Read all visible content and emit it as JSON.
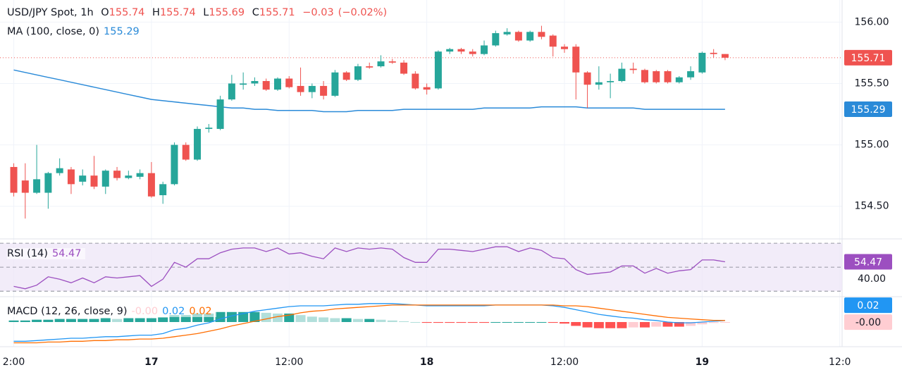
{
  "chart_data": {
    "type": "candlestick",
    "title": "USD/JPY Spot, 1h",
    "ohlc_letters": [
      "O",
      "H",
      "L",
      "C"
    ],
    "change": {
      "value": -0.03,
      "label": "−0.03"
    },
    "change_pct": {
      "value": -0.02,
      "label": "(−0.02%)"
    },
    "up_color": "#26a69a",
    "down_color": "#ef5350",
    "xlim": [
      -1.2,
      72.2
    ],
    "xticks": [
      {
        "value": 0,
        "label": "2:00"
      },
      {
        "value": 12,
        "label": "17"
      },
      {
        "value": 24,
        "label": "12:00"
      },
      {
        "value": 36,
        "label": "18"
      },
      {
        "value": 48,
        "label": "12:00"
      },
      {
        "value": 60,
        "label": "19"
      },
      {
        "value": 72,
        "label": "12:0"
      }
    ],
    "ylim": [
      154.24,
      156.18
    ],
    "yticks": [
      {
        "value": 154.5,
        "label": "154.50"
      },
      {
        "value": 155,
        "label": "155.00"
      },
      {
        "value": 155.5,
        "label": "155.50"
      },
      {
        "value": 156,
        "label": "156.00"
      }
    ],
    "grid": true,
    "x": [
      0,
      1,
      2,
      3,
      4,
      5,
      6,
      7,
      8,
      9,
      10,
      11,
      12,
      13,
      14,
      15,
      16,
      17,
      18,
      19,
      20,
      21,
      22,
      23,
      24,
      25,
      26,
      27,
      28,
      29,
      30,
      31,
      32,
      33,
      34,
      35,
      36,
      37,
      38,
      39,
      40,
      41,
      42,
      43,
      44,
      45,
      46,
      47,
      48,
      49,
      50,
      51,
      52,
      53,
      54,
      55,
      56,
      57,
      58,
      59,
      60,
      61,
      62
    ],
    "open": [
      154.82,
      154.71,
      154.61,
      154.61,
      154.77,
      154.8,
      154.7,
      154.75,
      154.66,
      154.79,
      154.73,
      154.74,
      154.77,
      154.59,
      154.68,
      155.0,
      154.88,
      155.13,
      155.13,
      155.37,
      155.49,
      155.5,
      155.52,
      155.45,
      155.54,
      155.48,
      155.43,
      155.48,
      155.4,
      155.59,
      155.53,
      155.64,
      155.64,
      155.68,
      155.67,
      155.58,
      155.47,
      155.46,
      155.76,
      155.78,
      155.76,
      155.74,
      155.81,
      155.9,
      155.92,
      155.85,
      155.92,
      155.89,
      155.8,
      155.8,
      155.59,
      155.49,
      155.51,
      155.52,
      155.62,
      155.61,
      155.6,
      155.6,
      155.51,
      155.55,
      155.59,
      155.75,
      155.74
    ],
    "high": [
      154.85,
      154.85,
      155.0,
      154.78,
      154.89,
      154.82,
      154.8,
      154.91,
      154.8,
      154.82,
      154.79,
      154.8,
      154.86,
      154.7,
      155.02,
      155.02,
      155.15,
      155.17,
      155.4,
      155.57,
      155.59,
      155.55,
      155.54,
      155.55,
      155.56,
      155.63,
      155.5,
      155.52,
      155.61,
      155.6,
      155.66,
      155.67,
      155.73,
      155.7,
      155.69,
      155.6,
      155.5,
      155.77,
      155.79,
      155.79,
      155.78,
      155.85,
      155.93,
      155.95,
      155.93,
      155.93,
      155.97,
      155.9,
      155.82,
      155.82,
      155.6,
      155.64,
      155.58,
      155.67,
      155.67,
      155.62,
      155.61,
      155.61,
      155.56,
      155.64,
      155.76,
      155.78,
      155.74
    ],
    "low": [
      154.58,
      154.4,
      154.6,
      154.48,
      154.75,
      154.6,
      154.67,
      154.64,
      154.6,
      154.71,
      154.72,
      154.72,
      154.57,
      154.52,
      154.67,
      154.87,
      154.87,
      155.1,
      155.12,
      155.36,
      155.45,
      155.48,
      155.44,
      155.44,
      155.46,
      155.4,
      155.38,
      155.37,
      155.39,
      155.52,
      155.52,
      155.62,
      155.63,
      155.66,
      155.57,
      155.45,
      155.41,
      155.45,
      155.74,
      155.74,
      155.72,
      155.73,
      155.8,
      155.89,
      155.84,
      155.84,
      155.86,
      155.72,
      155.75,
      155.37,
      155.3,
      155.45,
      155.38,
      155.51,
      155.58,
      155.5,
      155.5,
      155.5,
      155.5,
      155.53,
      155.58,
      155.71,
      155.69
    ],
    "close": [
      154.61,
      154.61,
      154.72,
      154.77,
      154.81,
      154.68,
      154.75,
      154.66,
      154.79,
      154.73,
      154.75,
      154.77,
      154.58,
      154.68,
      155.0,
      154.88,
      155.13,
      155.14,
      155.37,
      155.5,
      155.5,
      155.52,
      155.45,
      155.54,
      155.47,
      155.43,
      155.48,
      155.4,
      155.59,
      155.53,
      155.64,
      155.63,
      155.68,
      155.67,
      155.58,
      155.46,
      155.45,
      155.76,
      155.78,
      155.76,
      155.74,
      155.81,
      155.91,
      155.92,
      155.85,
      155.92,
      155.88,
      155.8,
      155.78,
      155.59,
      155.49,
      155.51,
      155.52,
      155.62,
      155.61,
      155.51,
      155.51,
      155.51,
      155.55,
      155.6,
      155.75,
      155.74,
      155.71
    ],
    "ma": {
      "name": "MA (100, close, 0)",
      "color": "#2a8ad8",
      "values": [
        155.61,
        155.59,
        155.57,
        155.55,
        155.53,
        155.51,
        155.49,
        155.47,
        155.45,
        155.43,
        155.41,
        155.39,
        155.37,
        155.36,
        155.35,
        155.34,
        155.33,
        155.32,
        155.31,
        155.3,
        155.3,
        155.29,
        155.29,
        155.28,
        155.28,
        155.28,
        155.28,
        155.27,
        155.27,
        155.27,
        155.28,
        155.28,
        155.28,
        155.28,
        155.29,
        155.29,
        155.29,
        155.29,
        155.29,
        155.29,
        155.29,
        155.3,
        155.3,
        155.3,
        155.3,
        155.3,
        155.31,
        155.31,
        155.31,
        155.31,
        155.3,
        155.3,
        155.3,
        155.3,
        155.3,
        155.29,
        155.29,
        155.29,
        155.29,
        155.29,
        155.29,
        155.29,
        155.29
      ]
    },
    "rsi": {
      "name": "RSI (14)",
      "color": "#9c4fc0",
      "band_color": "#ede4f7",
      "ylim": [
        26,
        73
      ],
      "yticks": [
        {
          "value": 40,
          "label": "40.00"
        }
      ],
      "levels": [
        30,
        50,
        70
      ],
      "values": [
        34,
        32,
        35,
        42,
        40,
        37,
        41,
        37,
        42,
        41,
        42,
        43,
        34,
        40,
        54,
        50,
        57,
        57,
        62,
        65,
        66,
        66,
        63,
        66,
        61,
        62,
        59,
        57,
        66,
        63,
        66,
        65,
        66,
        65,
        58,
        54,
        54,
        65,
        65,
        64,
        63,
        65,
        67,
        67,
        63,
        66,
        64,
        58,
        57,
        48,
        44,
        45,
        46,
        51,
        51,
        45,
        49,
        45,
        47,
        48,
        56,
        56,
        54.47
      ]
    },
    "macd": {
      "name": "MACD (12, 26, close, 9)",
      "ylim": [
        -0.32,
        0.32
      ],
      "macd": {
        "color": "#2196f3",
        "values": [
          -0.25,
          -0.25,
          -0.24,
          -0.23,
          -0.22,
          -0.21,
          -0.21,
          -0.2,
          -0.19,
          -0.19,
          -0.18,
          -0.17,
          -0.17,
          -0.15,
          -0.1,
          -0.08,
          -0.04,
          -0.01,
          0.04,
          0.08,
          0.11,
          0.14,
          0.16,
          0.18,
          0.2,
          0.21,
          0.21,
          0.21,
          0.22,
          0.23,
          0.23,
          0.24,
          0.24,
          0.24,
          0.23,
          0.22,
          0.21,
          0.21,
          0.21,
          0.21,
          0.21,
          0.21,
          0.22,
          0.22,
          0.22,
          0.22,
          0.22,
          0.21,
          0.19,
          0.16,
          0.13,
          0.1,
          0.08,
          0.06,
          0.05,
          0.03,
          0.02,
          0.0,
          -0.01,
          -0.01,
          0.0,
          0.01,
          0.02
        ]
      },
      "signal": {
        "color": "#ff6d00",
        "values": [
          -0.27,
          -0.27,
          -0.27,
          -0.26,
          -0.26,
          -0.25,
          -0.25,
          -0.24,
          -0.24,
          -0.23,
          -0.23,
          -0.22,
          -0.22,
          -0.21,
          -0.19,
          -0.17,
          -0.15,
          -0.12,
          -0.09,
          -0.05,
          -0.02,
          0.01,
          0.04,
          0.07,
          0.09,
          0.12,
          0.14,
          0.15,
          0.17,
          0.18,
          0.19,
          0.2,
          0.21,
          0.22,
          0.22,
          0.22,
          0.22,
          0.22,
          0.22,
          0.22,
          0.22,
          0.22,
          0.22,
          0.22,
          0.22,
          0.22,
          0.22,
          0.22,
          0.21,
          0.21,
          0.2,
          0.18,
          0.16,
          0.14,
          0.12,
          0.1,
          0.08,
          0.06,
          0.05,
          0.04,
          0.03,
          0.022,
          0.02
        ]
      },
      "histogram": {
        "colors": [
          "#26a69a",
          "#b2dfdb",
          "#ff5252",
          "#ffcdd2"
        ],
        "values": [
          0.02,
          0.02,
          0.03,
          0.03,
          0.04,
          0.04,
          0.04,
          0.04,
          0.05,
          0.04,
          0.05,
          0.05,
          0.05,
          0.06,
          0.09,
          0.09,
          0.11,
          0.11,
          0.13,
          0.13,
          0.13,
          0.13,
          0.12,
          0.11,
          0.11,
          0.09,
          0.07,
          0.06,
          0.05,
          0.05,
          0.04,
          0.04,
          0.03,
          0.02,
          0.01,
          0.0,
          -0.01,
          -0.01,
          -0.01,
          -0.01,
          -0.01,
          -0.01,
          0.0,
          0.0,
          0.0,
          0.0,
          0.0,
          -0.01,
          -0.02,
          -0.05,
          -0.07,
          -0.08,
          -0.08,
          -0.08,
          -0.07,
          -0.07,
          -0.06,
          -0.06,
          -0.06,
          -0.05,
          -0.03,
          -0.012,
          -0.001
        ],
        "value_labels": [
          null,
          null,
          null,
          null,
          null,
          null,
          null,
          null,
          null,
          null,
          null,
          null,
          null,
          null,
          null,
          null,
          null,
          null,
          null,
          null,
          null,
          null,
          null,
          null,
          null,
          null,
          null,
          null,
          null,
          null,
          null,
          null,
          null,
          null,
          null,
          null,
          null,
          null,
          null,
          null,
          null,
          null,
          null,
          null,
          null,
          null,
          null,
          null,
          null,
          null,
          null,
          null,
          null,
          null,
          null,
          null,
          null,
          null,
          null,
          null,
          null,
          null,
          "-0.00"
        ]
      }
    }
  }
}
